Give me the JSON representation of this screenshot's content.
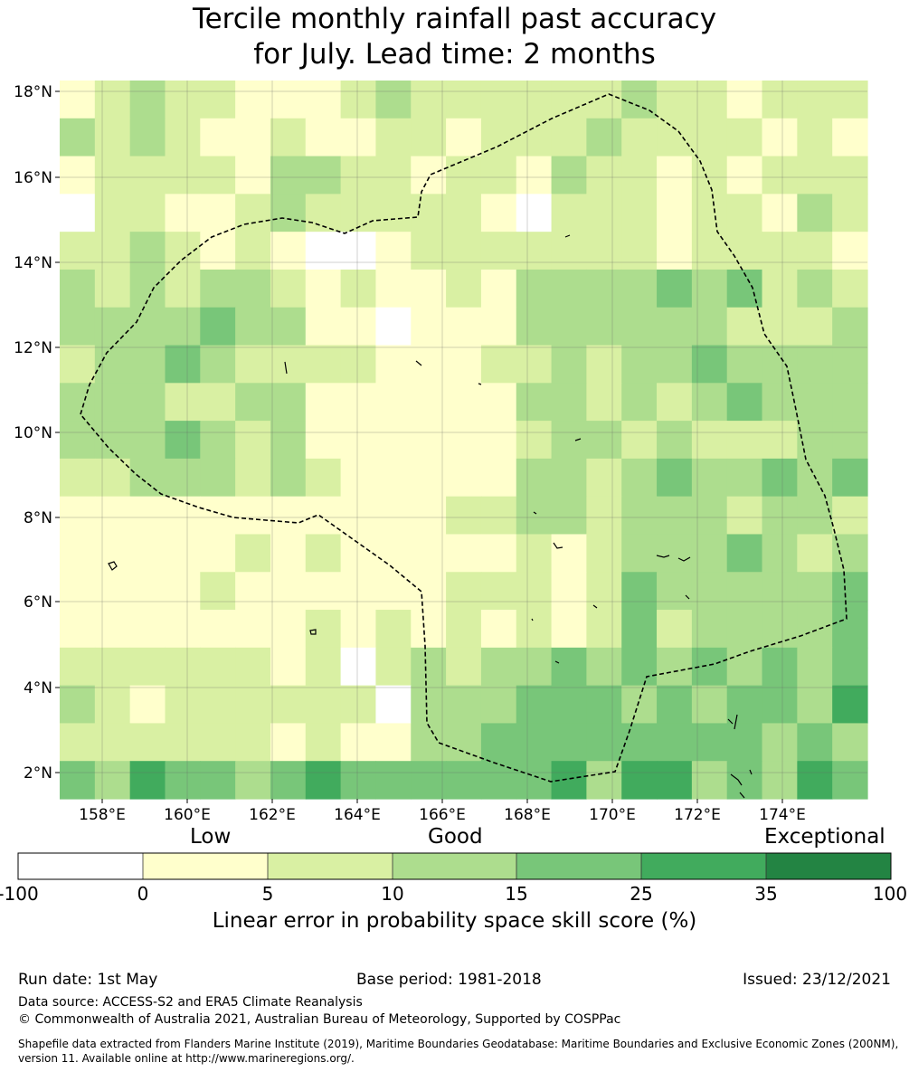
{
  "title": {
    "line1": "Tercile monthly rainfall past accuracy",
    "line2": "for July. Lead time: 2 months"
  },
  "map": {
    "lat_range": [
      1.4,
      18.4
    ],
    "lon_range": [
      157.0,
      176.0
    ],
    "lat_ticks": [
      "18°N",
      "16°N",
      "14°N",
      "12°N",
      "10°N",
      "8°N",
      "6°N",
      "4°N",
      "2°N"
    ],
    "lon_ticks": [
      "158°E",
      "160°E",
      "162°E",
      "164°E",
      "166°E",
      "168°E",
      "170°E",
      "172°E",
      "174°E"
    ],
    "grid_lines": true,
    "boundary": "dashed EEZ outline"
  },
  "colorbar": {
    "categories": [
      "Low",
      "Good",
      "Exceptional"
    ],
    "boundaries": [
      "-100",
      "0",
      "5",
      "10",
      "15",
      "25",
      "35",
      "100"
    ],
    "colors": [
      "#ffffff",
      "#ffffcc",
      "#d9f0a3",
      "#addd8e",
      "#78c679",
      "#41ab5d",
      "#238443"
    ],
    "label": "Linear error in probability space skill score (%)"
  },
  "footer": {
    "run_date": "Run date: 1st May",
    "base_period": "Base period: 1981-2018",
    "issued": "Issued: 23/12/2021",
    "data_source": "Data source: ACCESS-S2 and ERA5 Climate Reanalysis",
    "copyright": "© Commonwealth of Australia 2021, Australian Bureau of Meteorology, Supported by COSPPac",
    "shapefile_line1": "Shapefile data extracted from Flanders Marine Institute (2019), Maritime Boundaries Geodatabase: Maritime Boundaries and Exclusive Economic Zones (200NM),",
    "shapefile_line2": "version 11. Available online at http://www.marineregions.org/."
  }
}
